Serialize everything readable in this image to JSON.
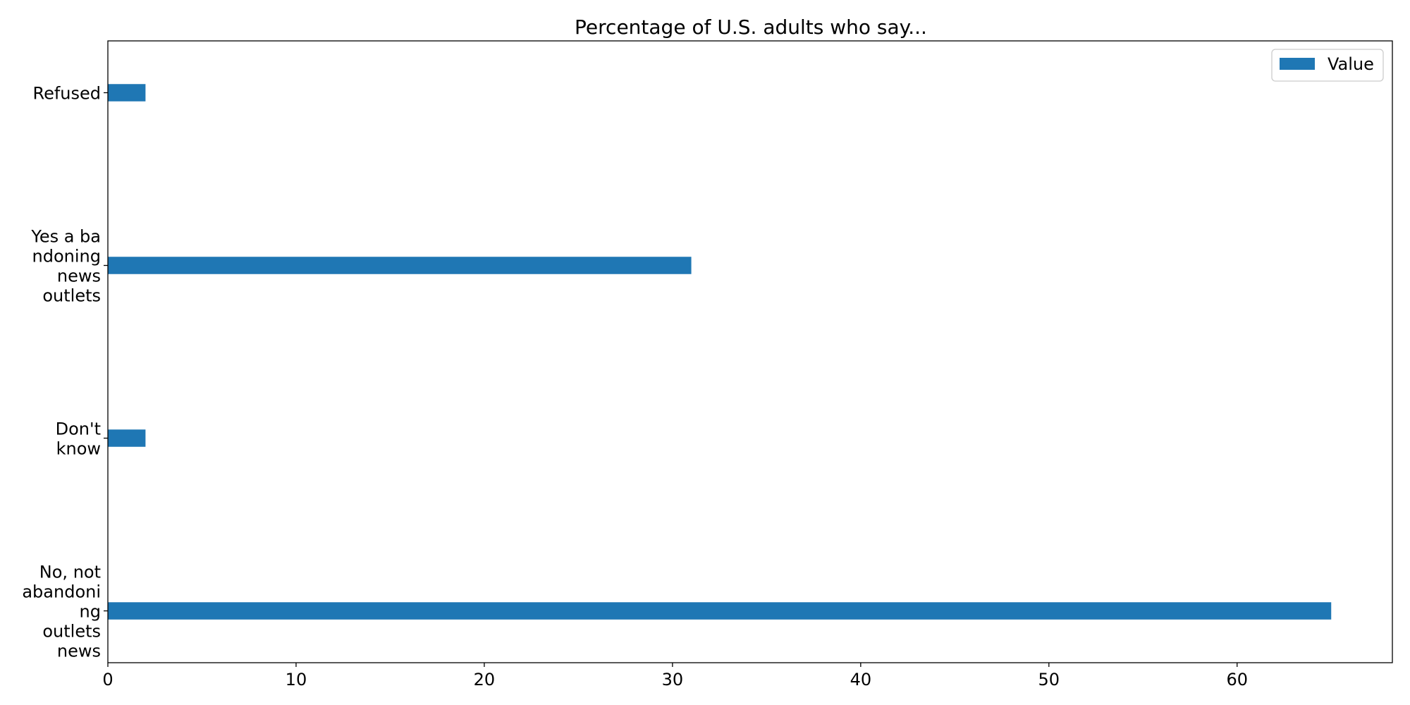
{
  "chart_data": {
    "type": "bar",
    "orientation": "horizontal",
    "title": "Percentage of U.S. adults who say...",
    "categories": [
      [
        "No, not",
        "abandoni",
        "ng",
        "outlets",
        "news"
      ],
      [
        "Don't",
        "know"
      ],
      [
        "Yes a ba",
        "ndoning",
        "news",
        "outlets"
      ],
      [
        "Refused"
      ]
    ],
    "series": [
      {
        "name": "Value",
        "values": [
          65,
          2,
          31,
          2
        ],
        "color": "#1f77b4"
      }
    ],
    "xlim": [
      0,
      68.25
    ],
    "xticks": [
      0,
      10,
      20,
      30,
      40,
      50,
      60
    ],
    "xlabel": "",
    "ylabel": "",
    "grid": false,
    "legend_position": "top-right"
  }
}
